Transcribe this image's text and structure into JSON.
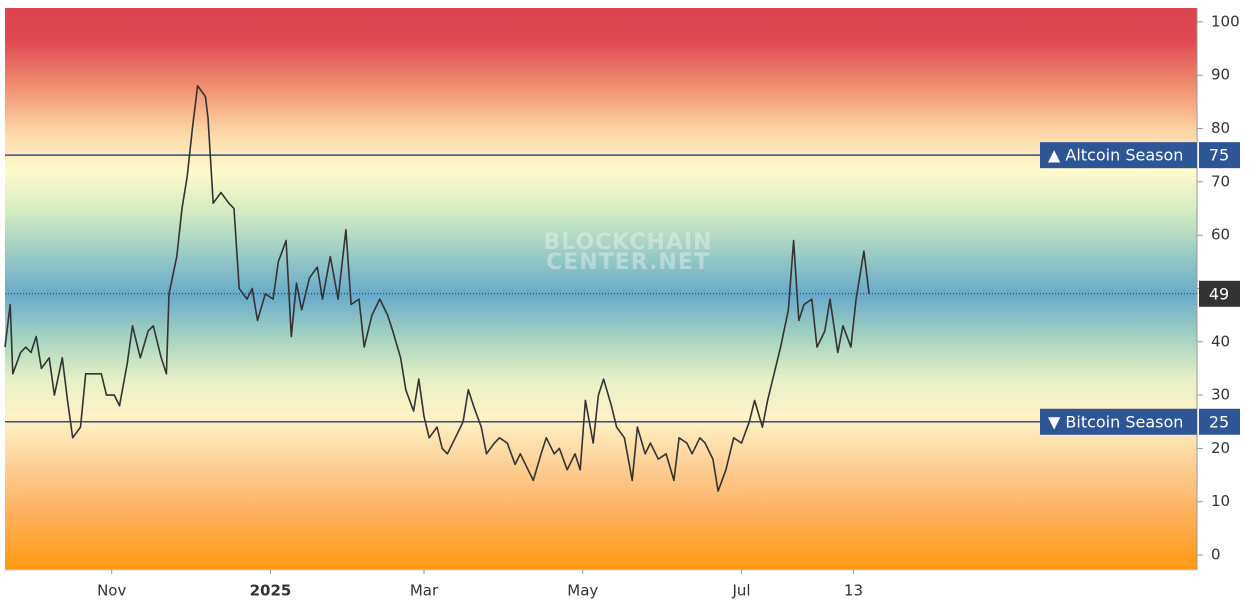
{
  "chart_data": {
    "type": "line",
    "x": [
      0,
      2,
      3,
      6,
      8,
      10,
      12,
      14,
      17,
      19,
      22,
      24,
      26,
      29,
      31,
      34,
      37,
      39,
      42,
      44,
      47,
      49,
      52,
      55,
      57,
      60,
      62,
      63,
      66,
      68,
      70,
      72,
      74,
      77,
      78,
      80,
      83,
      86,
      88,
      90,
      93,
      95,
      97,
      100,
      103,
      105,
      108,
      110,
      112,
      114,
      117,
      120,
      122,
      125,
      128,
      131,
      133,
      136,
      138,
      141,
      144,
      147,
      149,
      152,
      154,
      157,
      159,
      161,
      163,
      166,
      168,
      170,
      173,
      176,
      178,
      180,
      183,
      185,
      188,
      190,
      193,
      196,
      198,
      201,
      203,
      206,
      208,
      211,
      213,
      216,
      219,
      221,
      223,
      226,
      228,
      230,
      233,
      235,
      238,
      241,
      243,
      246,
      248,
      251,
      254,
      257,
      259,
      262,
      264,
      267,
      269,
      272,
      274,
      277,
      280,
      283,
      286,
      288,
      291,
      293,
      296,
      298,
      301,
      303,
      305,
      307,
      310,
      312,
      315,
      317,
      320,
      322,
      325,
      327,
      330,
      332
    ],
    "series": [
      {
        "color": "#333333",
        "values": [
          39,
          47,
          34,
          38,
          39,
          38,
          41,
          35,
          37,
          30,
          37,
          29,
          22,
          24,
          34,
          34,
          34,
          30,
          30,
          28,
          36,
          43,
          37,
          42,
          43,
          37,
          34,
          49,
          56,
          65,
          71,
          80,
          88,
          86,
          82,
          66,
          68,
          66,
          65,
          50,
          48,
          50,
          44,
          49,
          48,
          55,
          59,
          41,
          51,
          46,
          52,
          54,
          48,
          56,
          48,
          61,
          47,
          48,
          39,
          45,
          48,
          45,
          42,
          37,
          31,
          27,
          33,
          26,
          22,
          24,
          20,
          19,
          22,
          25,
          31,
          28,
          24,
          19,
          21,
          22,
          21,
          17,
          19,
          16,
          14,
          19,
          22,
          19,
          20,
          16,
          19,
          16,
          29,
          21,
          30,
          33,
          28,
          24,
          22,
          14,
          24,
          19,
          21,
          18,
          19,
          14,
          22,
          21,
          19,
          22,
          21,
          18,
          12,
          16,
          22,
          21,
          25,
          29,
          24,
          29,
          35,
          39,
          46,
          59,
          44,
          47,
          48,
          39,
          42,
          48,
          38,
          43,
          39,
          48,
          57,
          49
        ]
      }
    ],
    "xlim": [
      0,
      458
    ],
    "xticks": [
      {
        "value": 41,
        "label": "Nov"
      },
      {
        "value": 102,
        "label": "2025"
      },
      {
        "value": 161,
        "label": "Mar"
      },
      {
        "value": 222,
        "label": "May"
      },
      {
        "value": 283,
        "label": "Jul"
      },
      {
        "value": 326,
        "label": "13"
      }
    ],
    "ylim": [
      -2.8,
      102.6
    ],
    "yticks": [
      0,
      10,
      20,
      30,
      40,
      50,
      60,
      70,
      80,
      90,
      100
    ],
    "reference_lines": [
      {
        "label": "▲ Altcoin Season",
        "value": 75
      },
      {
        "label": "▼ Bitcoin Season",
        "value": 25
      }
    ],
    "last_value": 49,
    "watermark": [
      "BLOCKCHAIN",
      "CENTER.NET"
    ]
  }
}
